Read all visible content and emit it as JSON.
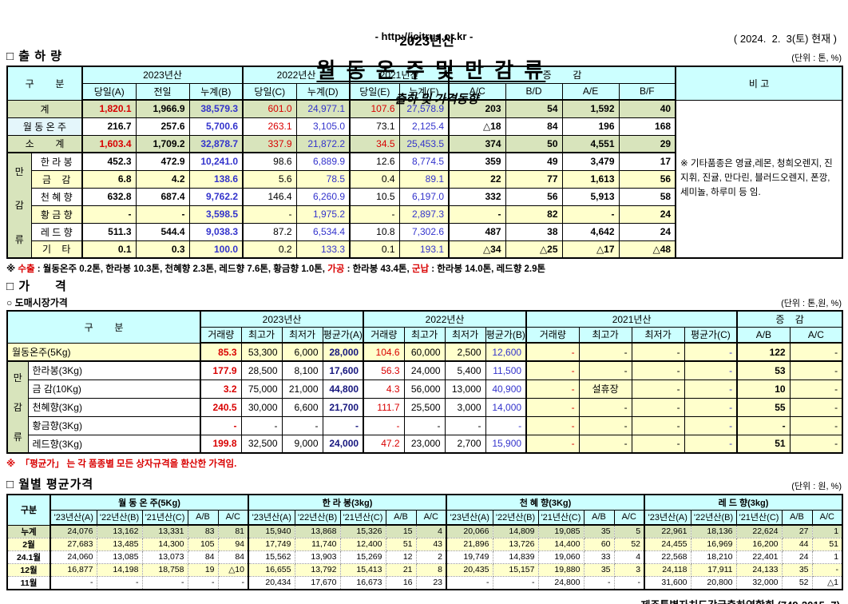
{
  "title": {
    "year": "2023년산",
    "main": "월 동 온 주 및 만 감 류",
    "suffix": "출하 및 가격동향",
    "url": "- http://jcitrus.or.kr -",
    "asof": "( 2024.  2.  3(토) 현재 )"
  },
  "colors": {
    "header_bg": "#CCFFFF",
    "band_green": "#D8E4BC",
    "band_yellow": "#FFFFCC",
    "highlight_cyan": "#E4F6FB",
    "text_red": "#D90000",
    "text_blue": "#3333CC",
    "text_navy": "#16167E"
  },
  "shipment": {
    "heading": "□ 출 하 량",
    "unit": "(단위 : 톤, %)",
    "col_groups": [
      "구        분",
      "2023년산",
      "2022년산",
      "2021년산",
      "증        감",
      "비 고"
    ],
    "sub_headers": [
      "당일(A)",
      "전일",
      "누계(B)",
      "당일(C)",
      "누계(D)",
      "당일(E)",
      "누계(F)",
      "A/C",
      "B/D",
      "A/E",
      "B/F"
    ],
    "presets": {
      "sum": [
        "red bold",
        "bold",
        "blue bold",
        "red",
        "blue",
        "red",
        "blue",
        "bold",
        "bold",
        "bold",
        "bold"
      ],
      "onju": [
        "bold",
        "bold",
        "blue bold",
        "red",
        "blue",
        "",
        "blue",
        "bold",
        "bold",
        "bold",
        "bold"
      ],
      "mg": [
        "bold",
        "bold",
        "blue bold",
        "",
        "blue",
        "",
        "blue",
        "bold",
        "bold",
        "bold",
        "bold"
      ]
    },
    "rows": [
      {
        "name": "계",
        "span": 2,
        "bg": "green",
        "cls": "sum",
        "cells": [
          "1,820.1",
          "1,966.9",
          "38,579.3",
          "601.0",
          "24,977.1",
          "107.6",
          "27,578.9",
          "203",
          "54",
          "1,592",
          "40"
        ]
      },
      {
        "name": "월 동 온 주",
        "span": 2,
        "bg": "white",
        "name_cls": "paleblue",
        "cls": "onju",
        "cells": [
          "216.7",
          "257.6",
          "5,700.6",
          "263.1",
          "3,105.0",
          "73.1",
          "2,125.4",
          "△18",
          "84",
          "196",
          "168"
        ]
      },
      {
        "name": "소        계",
        "span": 2,
        "bg": "green",
        "cls": "sum",
        "cells": [
          "1,603.4",
          "1,709.2",
          "32,878.7",
          "337.9",
          "21,872.2",
          "34.5",
          "25,453.5",
          "374",
          "50",
          "4,551",
          "29"
        ]
      },
      {
        "name": "한 라 봉",
        "bg": "white",
        "cls": "mg",
        "sep": true,
        "group": "만감류",
        "group_span": 6,
        "cells": [
          "452.3",
          "472.9",
          "10,241.0",
          "98.6",
          "6,889.9",
          "12.6",
          "8,774.5",
          "359",
          "49",
          "3,479",
          "17"
        ]
      },
      {
        "name": "금    감",
        "bg": "yellow",
        "cls": "mg",
        "cells": [
          "6.8",
          "4.2",
          "138.6",
          "5.6",
          "78.5",
          "0.4",
          "89.1",
          "22",
          "77",
          "1,613",
          "56"
        ]
      },
      {
        "name": "천 혜 향",
        "bg": "white",
        "cls": "mg",
        "cells": [
          "632.8",
          "687.4",
          "9,762.2",
          "146.4",
          "6,260.9",
          "10.5",
          "6,197.0",
          "332",
          "56",
          "5,913",
          "58"
        ]
      },
      {
        "name": "황 금 향",
        "bg": "yellow",
        "cls": "mg",
        "cells": [
          "-",
          "-",
          "3,598.5",
          "-",
          "1,975.2",
          "-",
          "2,897.3",
          "-",
          "82",
          "-",
          "24"
        ]
      },
      {
        "name": "레 드 향",
        "bg": "white",
        "cls": "mg",
        "cells": [
          "511.3",
          "544.4",
          "9,038.3",
          "87.2",
          "6,534.4",
          "10.8",
          "7,302.6",
          "487",
          "38",
          "4,642",
          "24"
        ]
      },
      {
        "name": "기    타",
        "bg": "yellow",
        "cls": "mg",
        "cells": [
          "0.1",
          "0.3",
          "100.0",
          "0.2",
          "133.3",
          "0.1",
          "193.1",
          "△34",
          "△25",
          "△17",
          "△48"
        ]
      }
    ],
    "remark": "※ 기타품종은 영귤,레몬, 청희오렌지, 진지휘, 진귤, 만다린, 블러드오렌지, 폰깡,세미놀, 하루미 등 임.",
    "footnote": [
      {
        "t": "※ ",
        "c": ""
      },
      {
        "t": "수출",
        "c": "red"
      },
      {
        "t": " : 월동온주 0.2톤, 한라봉 10.3톤, 천혜향 2.3톤, 레드향 7.6톤, 황금향 1.0톤, ",
        "c": ""
      },
      {
        "t": "가공",
        "c": "red"
      },
      {
        "t": " : 한라봉 43.4톤, ",
        "c": ""
      },
      {
        "t": "군납",
        "c": "red"
      },
      {
        "t": " : 한라봉 14.0톤, 레드향 2.9톤",
        "c": ""
      }
    ]
  },
  "price": {
    "heading": "□ 가      격",
    "sub_heading": "○ 도매시장가격",
    "unit": "(단위 : 톤,원, %)",
    "col_groups": [
      "구        분",
      "2023년산",
      "2022년산",
      "2021년산",
      "증    감"
    ],
    "sub_headers": [
      "거래량",
      "최고가",
      "최저가",
      "평균가(A)",
      "거래량",
      "최고가",
      "최저가",
      "평균가(B)",
      "거래량",
      "최고가",
      "최저가",
      "평균가(C)",
      "A/B",
      "A/C"
    ],
    "presets": {
      "p": [
        "red bold",
        "",
        "",
        "navy bold",
        "red",
        "",
        "",
        "blue",
        "red",
        "",
        "",
        "blue",
        "bold",
        ""
      ]
    },
    "rows": [
      {
        "name": "월동온주(5Kg)",
        "span": 2,
        "bg": "yellow",
        "cls": "p",
        "cells": [
          "85.3",
          "53,300",
          "6,000",
          "28,000",
          "104.6",
          "60,000",
          "2,500",
          "12,600",
          "-",
          "-",
          "-",
          "-",
          "122",
          "-"
        ]
      },
      {
        "name": "한라봉(3Kg)",
        "bg": "white",
        "cls": "p",
        "ys": 8,
        "sep": true,
        "group": "만감류",
        "group_span": 5,
        "cells": [
          "177.9",
          "28,500",
          "8,100",
          "17,600",
          "56.3",
          "24,000",
          "5,400",
          "11,500",
          "-",
          "-",
          "-",
          "-",
          "53",
          "-"
        ]
      },
      {
        "name": "금 감(10Kg)",
        "bg": "white",
        "cls": "p",
        "ys": 8,
        "cls_over": {
          "9": "ctr"
        },
        "cells": [
          "3.2",
          "75,000",
          "21,000",
          "44,800",
          "4.3",
          "56,000",
          "13,000",
          "40,900",
          "-",
          "설휴장",
          "-",
          "-",
          "10",
          "-"
        ]
      },
      {
        "name": "천혜향(3Kg)",
        "bg": "white",
        "cls": "p",
        "ys": 8,
        "cells": [
          "240.5",
          "30,000",
          "6,600",
          "21,700",
          "111.7",
          "25,500",
          "3,000",
          "14,000",
          "-",
          "-",
          "-",
          "-",
          "55",
          "-"
        ]
      },
      {
        "name": "황금향(3Kg)",
        "bg": "white",
        "cls": "p",
        "ys": 8,
        "cells": [
          "-",
          "-",
          "-",
          "-",
          "-",
          "-",
          "-",
          "-",
          "-",
          "-",
          "-",
          "-",
          "-",
          "-"
        ]
      },
      {
        "name": "레드향(3Kg)",
        "bg": "white",
        "cls": "p",
        "ys": 8,
        "cells": [
          "199.8",
          "32,500",
          "9,000",
          "24,000",
          "47.2",
          "23,000",
          "2,700",
          "15,900",
          "-",
          "-",
          "-",
          "-",
          "51",
          "-"
        ]
      }
    ],
    "footnote": "※  「평균가」 는 각 품종별 모든 상자규격을 환산한 가격임."
  },
  "monthly": {
    "heading": "□ 월별 평균가격",
    "unit": "(단위 : 원, %)",
    "col_label": "구분",
    "groups": [
      "월 동 온 주(5Kg)",
      "한 라 봉(3kg)",
      "천 혜 향(3Kg)",
      "레 드 향(3kg)"
    ],
    "sub_headers": [
      "'23년산(A)",
      "'22년산(B)",
      "'21년산(C)",
      "A/B",
      "A/C"
    ],
    "rows": [
      {
        "name": "누계",
        "bg": "green",
        "cells": [
          "24,076",
          "13,162",
          "13,331",
          "83",
          "81",
          "15,940",
          "13,868",
          "15,326",
          "15",
          "4",
          "20,066",
          "14,809",
          "19,085",
          "35",
          "5",
          "22,961",
          "18,136",
          "22,624",
          "27",
          "1"
        ]
      },
      {
        "name": "2월",
        "bg": "yellow",
        "cells": [
          "27,683",
          "13,485",
          "14,300",
          "105",
          "94",
          "17,749",
          "11,740",
          "12,400",
          "51",
          "43",
          "21,896",
          "13,726",
          "14,400",
          "60",
          "52",
          "24,455",
          "16,969",
          "16,200",
          "44",
          "51"
        ]
      },
      {
        "name": "24.1월",
        "bg": "white",
        "cells": [
          "24,060",
          "13,085",
          "13,073",
          "84",
          "84",
          "15,562",
          "13,903",
          "15,269",
          "12",
          "2",
          "19,749",
          "14,839",
          "19,060",
          "33",
          "4",
          "22,568",
          "18,210",
          "22,401",
          "24",
          "1"
        ]
      },
      {
        "name": "12월",
        "bg": "yellow",
        "cells": [
          "16,877",
          "14,198",
          "18,758",
          "19",
          "△10",
          "16,655",
          "13,792",
          "15,413",
          "21",
          "8",
          "20,435",
          "15,157",
          "19,880",
          "35",
          "3",
          "24,118",
          "17,911",
          "24,133",
          "35",
          "-"
        ]
      },
      {
        "name": "11월",
        "bg": "white",
        "cells": [
          "-",
          "-",
          "-",
          "-",
          "-",
          "20,434",
          "17,670",
          "16,673",
          "16",
          "23",
          "-",
          "-",
          "24,800",
          "-",
          "-",
          "31,600",
          "20,800",
          "32,000",
          "52",
          "△1"
        ]
      }
    ]
  },
  "footer": "제주특별자치도감귤출하연합회 (749-2015~7)"
}
